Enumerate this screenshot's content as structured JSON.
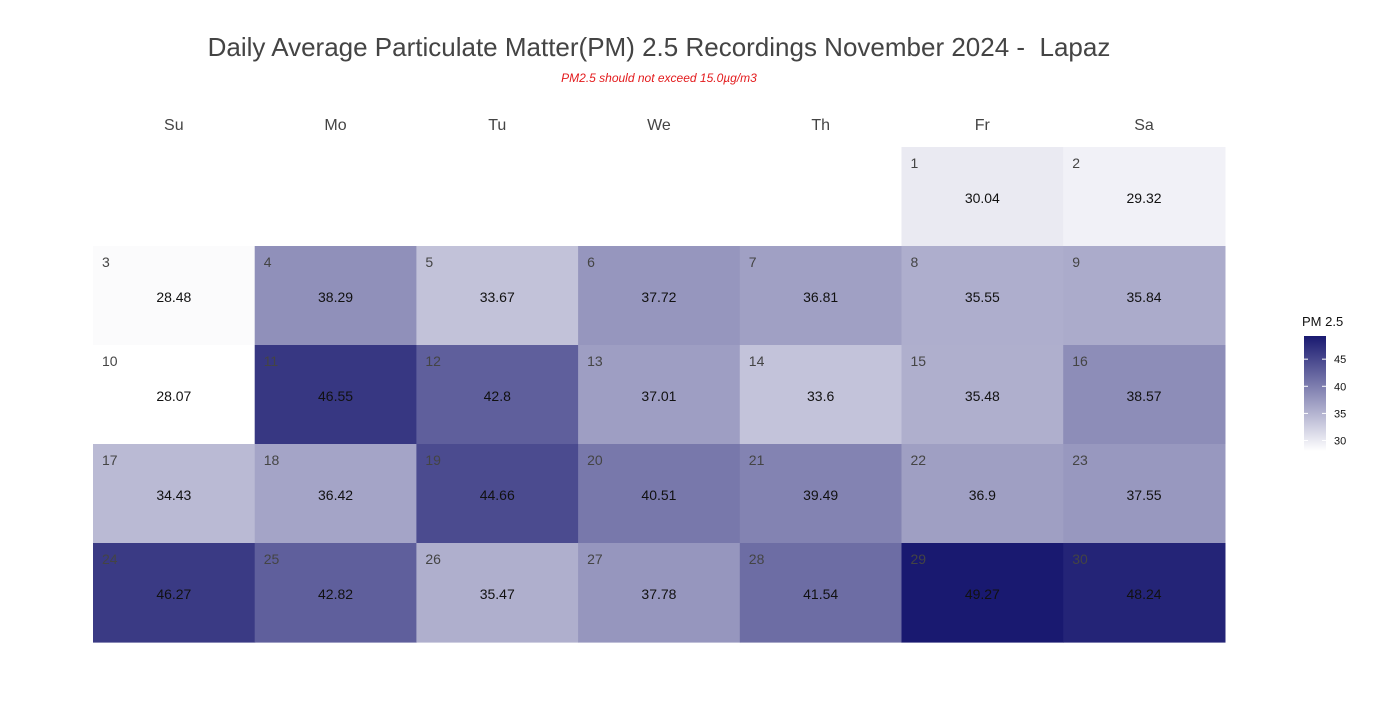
{
  "title": "Daily Average Particulate Matter(PM) 2.5 Recordings November 2024 -  Lapaz",
  "subtitle": "PM2.5 should not exceed 15.0µg/m3",
  "chart_data": {
    "type": "heatmap",
    "weekdays": [
      "Su",
      "Mo",
      "Tu",
      "We",
      "Th",
      "Fr",
      "Sa"
    ],
    "first_weekday_index": 5,
    "days": [
      1,
      2,
      3,
      4,
      5,
      6,
      7,
      8,
      9,
      10,
      11,
      12,
      13,
      14,
      15,
      16,
      17,
      18,
      19,
      20,
      21,
      22,
      23,
      24,
      25,
      26,
      27,
      28,
      29,
      30
    ],
    "values": [
      30.04,
      29.32,
      28.48,
      38.29,
      33.67,
      37.72,
      36.81,
      35.55,
      35.84,
      28.07,
      46.55,
      42.8,
      37.01,
      33.6,
      35.48,
      38.57,
      34.43,
      36.42,
      44.66,
      40.51,
      39.49,
      36.9,
      37.55,
      46.27,
      42.82,
      35.47,
      37.78,
      41.54,
      49.27,
      48.24
    ],
    "legend": {
      "title": "PM 2.5",
      "ticks": [
        30,
        35,
        40,
        45
      ],
      "range": [
        28.07,
        49.27
      ],
      "color_low": "#ffffff",
      "color_high": "#191970"
    }
  }
}
